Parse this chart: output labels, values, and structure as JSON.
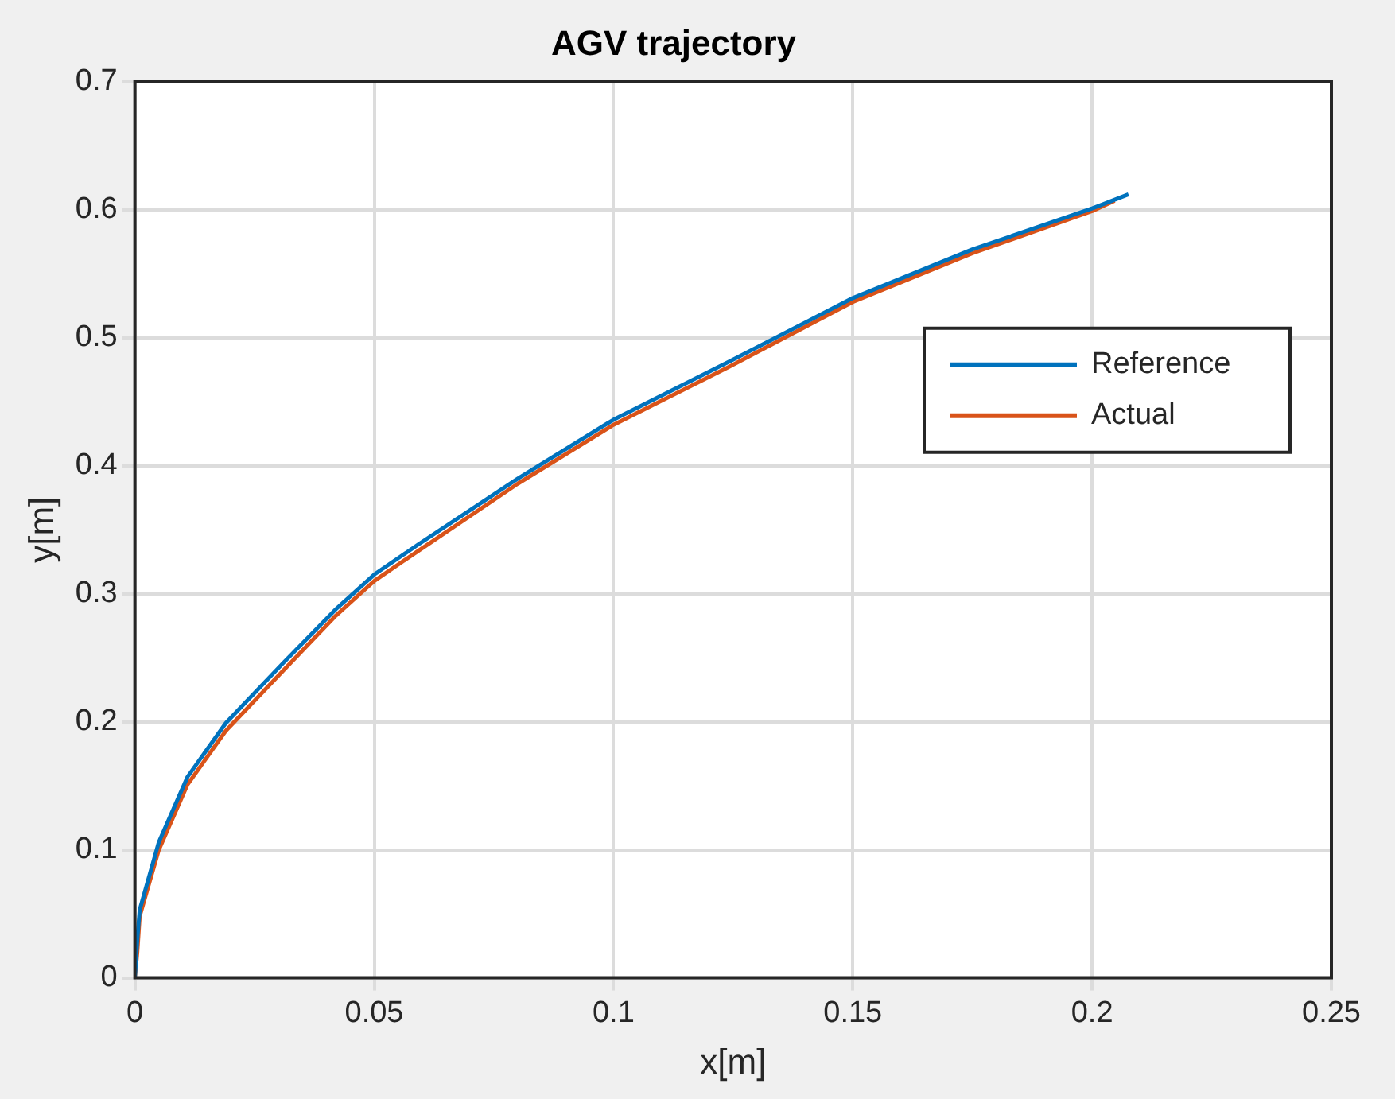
{
  "chart_data": {
    "type": "line",
    "title": "AGV trajectory",
    "xlabel": "x[m]",
    "ylabel": "y[m]",
    "xlim": [
      0,
      0.25
    ],
    "xticks": [
      0,
      0.05,
      0.1,
      0.15,
      0.2,
      0.25
    ],
    "ylim": [
      0,
      0.7
    ],
    "yticks": [
      0,
      0.1,
      0.2,
      0.3,
      0.4,
      0.5,
      0.6,
      0.7
    ],
    "grid": true,
    "legend": "top right",
    "marker": "none",
    "line_style": "solid",
    "series": [
      {
        "name": "Reference",
        "color": "#0072bd",
        "x": [
          0,
          0.0005,
          0.001,
          0.005,
          0.011,
          0.019,
          0.031,
          0.042,
          0.05,
          0.059,
          0.08,
          0.1,
          0.124,
          0.15,
          0.175,
          0.2,
          0.2076
        ],
        "values": [
          0,
          0.03,
          0.053,
          0.106,
          0.157,
          0.199,
          0.246,
          0.288,
          0.315,
          0.338,
          0.39,
          0.436,
          0.481,
          0.531,
          0.569,
          0.601,
          0.612
        ]
      },
      {
        "name": "Actual",
        "color": "#d95319",
        "x": [
          0,
          0.0005,
          0.001,
          0.005,
          0.011,
          0.019,
          0.031,
          0.042,
          0.05,
          0.059,
          0.08,
          0.1,
          0.124,
          0.15,
          0.175,
          0.2,
          0.2047
        ],
        "values": [
          0,
          0.02,
          0.048,
          0.1,
          0.151,
          0.193,
          0.24,
          0.283,
          0.31,
          0.333,
          0.386,
          0.432,
          0.477,
          0.528,
          0.566,
          0.599,
          0.607
        ]
      }
    ]
  }
}
